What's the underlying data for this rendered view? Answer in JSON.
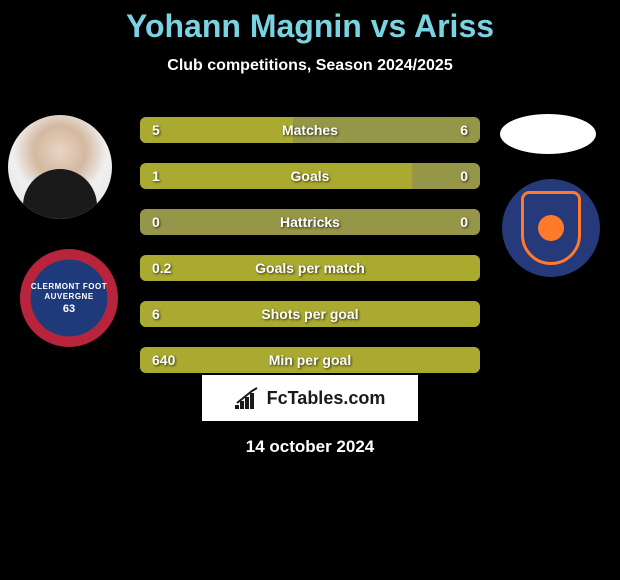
{
  "header": {
    "title_color": "#7ad3e0",
    "player1_name": "Yohann Magnin",
    "vs": "vs",
    "player2_name": "Ariss",
    "subtitle": "Club competitions, Season 2024/2025"
  },
  "player1": {
    "crest_outer_color": "#b8243c",
    "crest_inner_color": "#1e3a7a",
    "crest_text_line1": "CLERMONT FOOT",
    "crest_text_line2": "AUVERGNE",
    "crest_number": "63"
  },
  "player2": {
    "crest_bg": "#26397a",
    "crest_accent": "#ff7a2a"
  },
  "chart": {
    "type": "paired-bar",
    "bar_bg_color": "#969648",
    "bar_fill_color": "#a9aa2f",
    "label_fontsize": 14,
    "rows": [
      {
        "label": "Matches",
        "left_val": "5",
        "right_val": "6",
        "left_pct": 45,
        "right_pct": 0
      },
      {
        "label": "Goals",
        "left_val": "1",
        "right_val": "0",
        "left_pct": 80,
        "right_pct": 0
      },
      {
        "label": "Hattricks",
        "left_val": "0",
        "right_val": "0",
        "left_pct": 0,
        "right_pct": 0
      },
      {
        "label": "Goals per match",
        "left_val": "0.2",
        "right_val": "",
        "left_pct": 100,
        "right_pct": 0
      },
      {
        "label": "Shots per goal",
        "left_val": "6",
        "right_val": "",
        "left_pct": 100,
        "right_pct": 0
      },
      {
        "label": "Min per goal",
        "left_val": "640",
        "right_val": "",
        "left_pct": 100,
        "right_pct": 0
      }
    ]
  },
  "branding": {
    "text": "FcTables.com"
  },
  "footer": {
    "date": "14 october 2024"
  }
}
